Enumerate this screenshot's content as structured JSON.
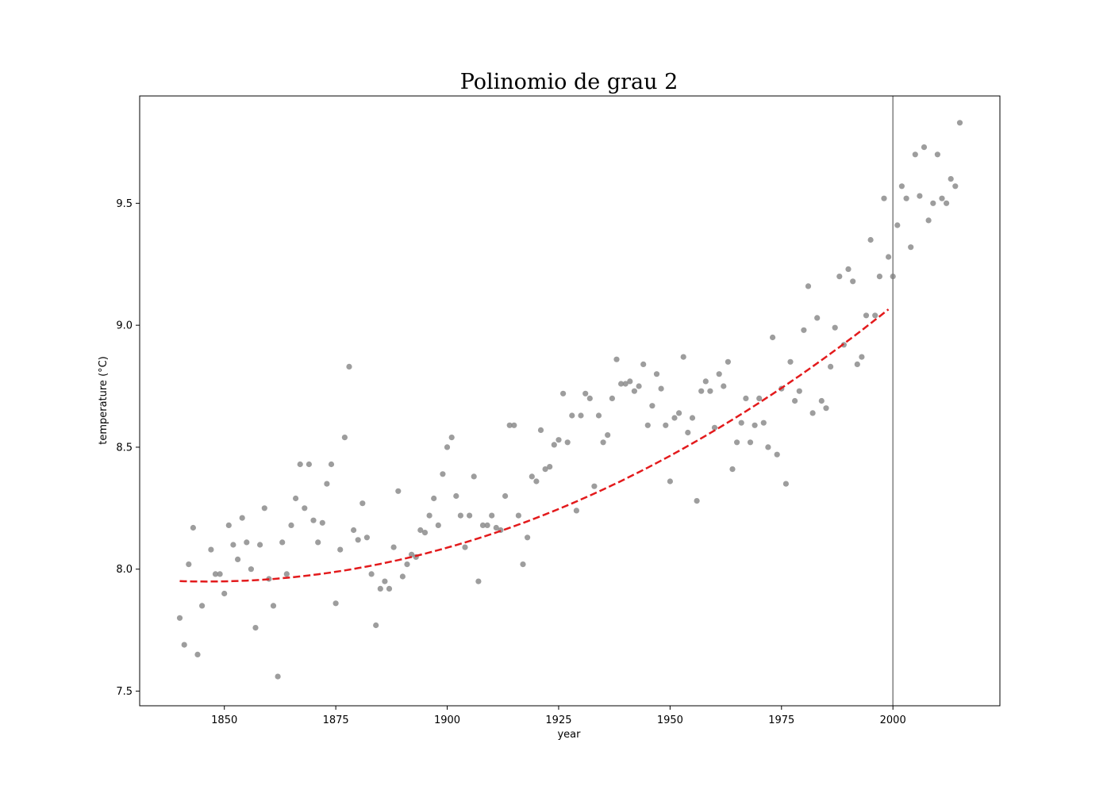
{
  "chart_data": {
    "type": "scatter",
    "title": "Polinomio de grau 2",
    "xlabel": "year",
    "ylabel": "temperature (°C)",
    "xlim": [
      1831,
      2024
    ],
    "ylim": [
      7.44,
      9.94
    ],
    "xticks": [
      1850,
      1875,
      1900,
      1925,
      1950,
      1975,
      2000
    ],
    "yticks": [
      7.5,
      8.0,
      8.5,
      9.0,
      9.5
    ],
    "xtick_labels": [
      "1850",
      "1875",
      "1900",
      "1925",
      "1950",
      "1975",
      "2000"
    ],
    "ytick_labels": [
      "7.5",
      "8.0",
      "8.5",
      "9.0",
      "9.5"
    ],
    "grid": false,
    "point_color": "#8c8c8c",
    "fit_color": "#e31a1c",
    "vline_color": "#808080",
    "vline_x": 2000,
    "fit_x_range": [
      1840,
      1999
    ],
    "fit_coefficients": {
      "a": 4.77e-05,
      "center": 1840,
      "b": -0.000576,
      "c": 7.951
    },
    "points": {
      "x": [
        1840,
        1841,
        1842,
        1843,
        1844,
        1845,
        1847,
        1848,
        1849,
        1850,
        1851,
        1852,
        1853,
        1854,
        1855,
        1856,
        1857,
        1858,
        1859,
        1860,
        1861,
        1862,
        1863,
        1864,
        1865,
        1866,
        1867,
        1868,
        1869,
        1870,
        1871,
        1872,
        1873,
        1874,
        1875,
        1876,
        1877,
        1878,
        1879,
        1880,
        1881,
        1882,
        1883,
        1884,
        1885,
        1886,
        1887,
        1888,
        1889,
        1890,
        1891,
        1892,
        1893,
        1894,
        1895,
        1896,
        1897,
        1898,
        1899,
        1900,
        1901,
        1902,
        1903,
        1904,
        1905,
        1906,
        1907,
        1908,
        1909,
        1910,
        1911,
        1912,
        1913,
        1914,
        1915,
        1916,
        1917,
        1918,
        1919,
        1920,
        1921,
        1922,
        1923,
        1924,
        1925,
        1926,
        1927,
        1928,
        1929,
        1930,
        1931,
        1932,
        1933,
        1934,
        1935,
        1936,
        1937,
        1938,
        1939,
        1940,
        1941,
        1942,
        1943,
        1944,
        1945,
        1946,
        1947,
        1948,
        1949,
        1950,
        1951,
        1952,
        1953,
        1954,
        1955,
        1956,
        1957,
        1958,
        1959,
        1960,
        1961,
        1962,
        1963,
        1964,
        1965,
        1966,
        1967,
        1968,
        1969,
        1970,
        1971,
        1972,
        1973,
        1974,
        1975,
        1976,
        1977,
        1978,
        1979,
        1980,
        1981,
        1982,
        1983,
        1984,
        1985,
        1986,
        1987,
        1988,
        1989,
        1990,
        1991,
        1992,
        1993,
        1994,
        1995,
        1996,
        1997,
        1998,
        1999,
        2000,
        2001,
        2002,
        2003,
        2004,
        2005,
        2006,
        2007,
        2008,
        2009,
        2010,
        2011,
        2012,
        2013,
        2014,
        2015
      ],
      "y": [
        7.8,
        7.69,
        8.02,
        8.17,
        7.65,
        7.85,
        8.08,
        7.98,
        7.98,
        7.9,
        8.18,
        8.1,
        8.04,
        8.21,
        8.11,
        8.0,
        7.76,
        8.1,
        8.25,
        7.96,
        7.85,
        7.56,
        8.11,
        7.98,
        8.18,
        8.29,
        8.43,
        8.25,
        8.43,
        8.2,
        8.11,
        8.19,
        8.35,
        8.43,
        7.86,
        8.08,
        8.54,
        8.83,
        8.16,
        8.12,
        8.27,
        8.13,
        7.98,
        7.77,
        7.92,
        7.95,
        7.92,
        8.09,
        8.32,
        7.97,
        8.02,
        8.06,
        8.05,
        8.16,
        8.15,
        8.22,
        8.29,
        8.18,
        8.39,
        8.5,
        8.54,
        8.3,
        8.22,
        8.09,
        8.22,
        8.38,
        7.95,
        8.18,
        8.18,
        8.22,
        8.17,
        8.16,
        8.3,
        8.59,
        8.59,
        8.22,
        8.02,
        8.13,
        8.38,
        8.36,
        8.57,
        8.41,
        8.42,
        8.51,
        8.53,
        8.72,
        8.52,
        8.63,
        8.24,
        8.63,
        8.72,
        8.7,
        8.34,
        8.63,
        8.52,
        8.55,
        8.7,
        8.86,
        8.76,
        8.76,
        8.77,
        8.73,
        8.75,
        8.84,
        8.59,
        8.67,
        8.8,
        8.74,
        8.59,
        8.36,
        8.62,
        8.64,
        8.87,
        8.56,
        8.62,
        8.28,
        8.73,
        8.77,
        8.73,
        8.58,
        8.8,
        8.75,
        8.85,
        8.41,
        8.52,
        8.6,
        8.7,
        8.52,
        8.59,
        8.7,
        8.6,
        8.5,
        8.95,
        8.47,
        8.74,
        8.35,
        8.85,
        8.69,
        8.73,
        8.98,
        9.16,
        8.64,
        9.03,
        8.69,
        8.66,
        8.83,
        8.99,
        9.2,
        8.92,
        9.23,
        9.18,
        8.84,
        8.87,
        9.04,
        9.35,
        9.04,
        9.2,
        9.52,
        9.28,
        9.2,
        9.41,
        9.57,
        9.52,
        9.32,
        9.7,
        9.53,
        9.73,
        9.43,
        9.5,
        9.7,
        9.52,
        9.5,
        9.6,
        9.57,
        9.83
      ]
    }
  }
}
